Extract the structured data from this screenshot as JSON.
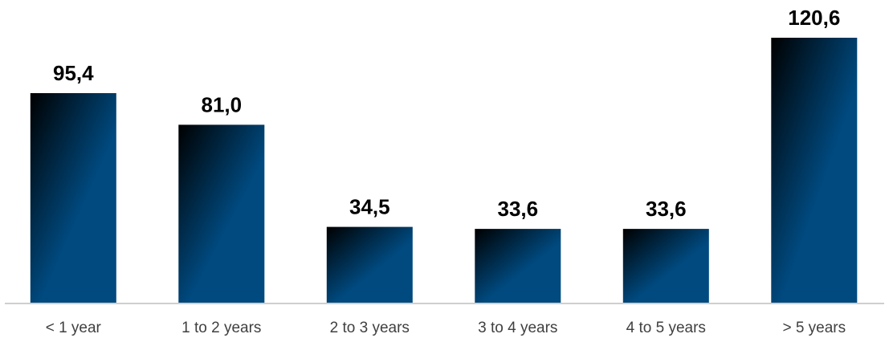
{
  "chart_data": {
    "type": "bar",
    "categories": [
      "< 1 year",
      "1 to 2 years",
      "2 to 3 years",
      "3 to 4 years",
      "4 to 5 years",
      "> 5 years"
    ],
    "values": [
      95.4,
      81.0,
      34.5,
      33.6,
      33.6,
      120.6
    ],
    "value_labels": [
      "95,4",
      "81,0",
      "34,5",
      "33,6",
      "33,6",
      "120,6"
    ],
    "title": "",
    "xlabel": "",
    "ylabel": "",
    "ylim": [
      0,
      120.6
    ],
    "grid": false,
    "legend": "none",
    "colors": {
      "bar_dark": "#000000",
      "bar_light": "#004a80",
      "axis": "#bfbfbf",
      "tick_text": "#404040",
      "value_text": "#000000"
    }
  }
}
